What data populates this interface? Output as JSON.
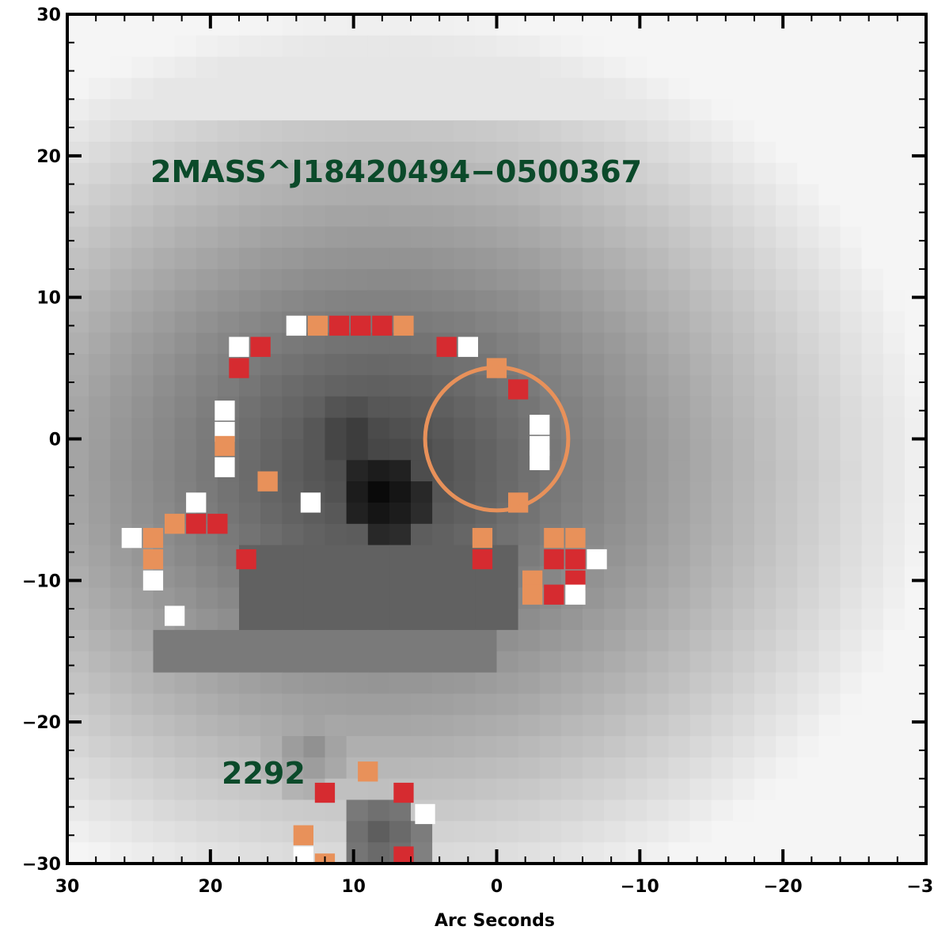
{
  "chart_data": {
    "type": "heatmap",
    "title": "",
    "xlabel": "Arc Seconds",
    "ylabel": "",
    "xlim": [
      30,
      -30
    ],
    "ylim": [
      -30,
      30
    ],
    "x_ticks": [
      30,
      20,
      10,
      0,
      -10,
      -20,
      -30
    ],
    "y_ticks": [
      30,
      20,
      10,
      0,
      -10,
      -20,
      -30
    ],
    "x_tick_labels": [
      "30",
      "20",
      "10",
      "0",
      "−10",
      "−20",
      "−30"
    ],
    "y_tick_labels": [
      "30",
      "20",
      "10",
      "0",
      "−10",
      "−20",
      "−30"
    ],
    "colormap": "grayscale",
    "colors": {
      "annotation": "#0b4a2a",
      "circle": "#e8915a",
      "mark_red": "#d62b30",
      "mark_orange": "#e8915a",
      "mark_white": "#ffffff"
    },
    "annotations": [
      {
        "text": "2MASS^J18420494−0500367",
        "x": 24,
        "y": 19
      },
      {
        "text": "2292",
        "x": 19,
        "y": -23
      }
    ],
    "aperture_circle": {
      "center": [
        0,
        0
      ],
      "radius": 5
    },
    "features": [
      {
        "name": "dark core",
        "x": 8,
        "y": -4,
        "level": 0.02
      },
      {
        "name": "dark cavity",
        "x": 10,
        "y": 0,
        "level": 0.2
      },
      {
        "name": "inner plateau",
        "x": 12,
        "y": -10,
        "level": 0.35
      },
      {
        "name": "lower plateau",
        "x": 13,
        "y": -22,
        "level": 0.55
      },
      {
        "name": "lower knot",
        "x": 8,
        "y": -28,
        "level": 0.35
      }
    ],
    "masked_pixels": [
      {
        "x": 14,
        "y": 8,
        "c": "white"
      },
      {
        "x": 12.5,
        "y": 8,
        "c": "orange"
      },
      {
        "x": 11,
        "y": 8,
        "c": "red"
      },
      {
        "x": 9.5,
        "y": 8,
        "c": "red"
      },
      {
        "x": 8,
        "y": 8,
        "c": "red"
      },
      {
        "x": 6.5,
        "y": 8,
        "c": "orange"
      },
      {
        "x": 18,
        "y": 6.5,
        "c": "white"
      },
      {
        "x": 16.5,
        "y": 6.5,
        "c": "red"
      },
      {
        "x": 18,
        "y": 5,
        "c": "red"
      },
      {
        "x": 3.5,
        "y": 6.5,
        "c": "red"
      },
      {
        "x": 2,
        "y": 6.5,
        "c": "white"
      },
      {
        "x": 0,
        "y": 5,
        "c": "orange"
      },
      {
        "x": -1.5,
        "y": 3.5,
        "c": "red"
      },
      {
        "x": 19,
        "y": 2,
        "c": "white"
      },
      {
        "x": 19,
        "y": 0.5,
        "c": "white"
      },
      {
        "x": 19,
        "y": -0.5,
        "c": "orange"
      },
      {
        "x": 19,
        "y": -2,
        "c": "white"
      },
      {
        "x": 16,
        "y": -3,
        "c": "orange"
      },
      {
        "x": 13,
        "y": -4.5,
        "c": "white"
      },
      {
        "x": -3,
        "y": 1,
        "c": "white"
      },
      {
        "x": -3,
        "y": -0.5,
        "c": "white"
      },
      {
        "x": -3,
        "y": -1.5,
        "c": "white"
      },
      {
        "x": -1.5,
        "y": -4.5,
        "c": "orange"
      },
      {
        "x": 21,
        "y": -4.5,
        "c": "white"
      },
      {
        "x": 22.5,
        "y": -6,
        "c": "orange"
      },
      {
        "x": 21,
        "y": -6,
        "c": "red"
      },
      {
        "x": 19.5,
        "y": -6,
        "c": "red"
      },
      {
        "x": 25.5,
        "y": -7,
        "c": "white"
      },
      {
        "x": 24,
        "y": -7,
        "c": "orange"
      },
      {
        "x": 24,
        "y": -8.5,
        "c": "orange"
      },
      {
        "x": 24,
        "y": -10,
        "c": "white"
      },
      {
        "x": 22.5,
        "y": -12.5,
        "c": "white"
      },
      {
        "x": 17.5,
        "y": -8.5,
        "c": "red"
      },
      {
        "x": 1,
        "y": -7,
        "c": "orange"
      },
      {
        "x": 1,
        "y": -8.5,
        "c": "red"
      },
      {
        "x": -4,
        "y": -7,
        "c": "orange"
      },
      {
        "x": -5.5,
        "y": -7,
        "c": "orange"
      },
      {
        "x": -4,
        "y": -8.5,
        "c": "red"
      },
      {
        "x": -5.5,
        "y": -8.5,
        "c": "red"
      },
      {
        "x": -7,
        "y": -8.5,
        "c": "white"
      },
      {
        "x": -5.5,
        "y": -10,
        "c": "red"
      },
      {
        "x": -2.5,
        "y": -10,
        "c": "orange"
      },
      {
        "x": -2.5,
        "y": -11,
        "c": "orange"
      },
      {
        "x": -4,
        "y": -11,
        "c": "red"
      },
      {
        "x": -5.5,
        "y": -11,
        "c": "white"
      },
      {
        "x": 9,
        "y": -23.5,
        "c": "orange"
      },
      {
        "x": 12,
        "y": -25,
        "c": "red"
      },
      {
        "x": 6.5,
        "y": -25,
        "c": "red"
      },
      {
        "x": 5,
        "y": -26.5,
        "c": "white"
      },
      {
        "x": 13.5,
        "y": -28,
        "c": "orange"
      },
      {
        "x": 13.5,
        "y": -29.5,
        "c": "white"
      },
      {
        "x": 6.5,
        "y": -29.5,
        "c": "red"
      },
      {
        "x": 12,
        "y": -30,
        "c": "orange"
      }
    ]
  }
}
